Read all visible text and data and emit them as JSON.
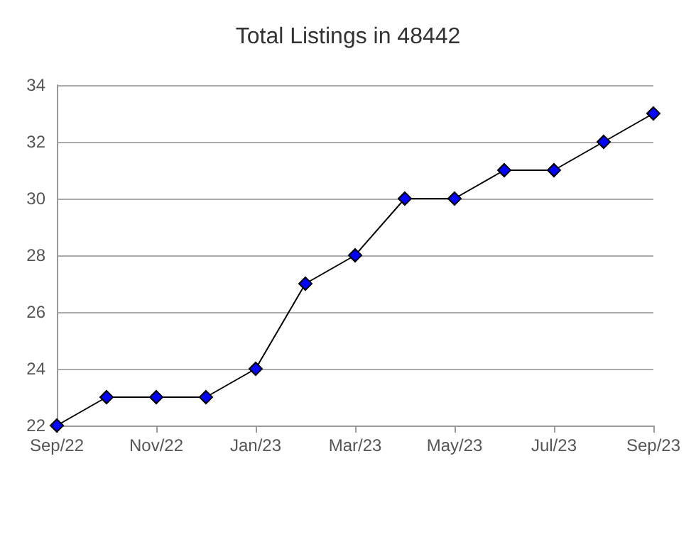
{
  "chart_data": {
    "type": "line",
    "title": "Total Listings in 48442",
    "categories": [
      "Sep/22",
      null,
      "Nov/22",
      null,
      "Jan/23",
      null,
      "Mar/23",
      null,
      "May/23",
      null,
      "Jul/23",
      null,
      "Sep/23"
    ],
    "series": [
      {
        "color": "#0000ff",
        "values": [
          22,
          23,
          23,
          23,
          24,
          27,
          28,
          30,
          30,
          31,
          31,
          32,
          33
        ]
      }
    ],
    "ylim": [
      22,
      34
    ],
    "yticks": [
      22,
      24,
      26,
      28,
      30,
      32,
      34
    ],
    "grid": "y",
    "marker": "diamond",
    "line_style": "solid"
  }
}
